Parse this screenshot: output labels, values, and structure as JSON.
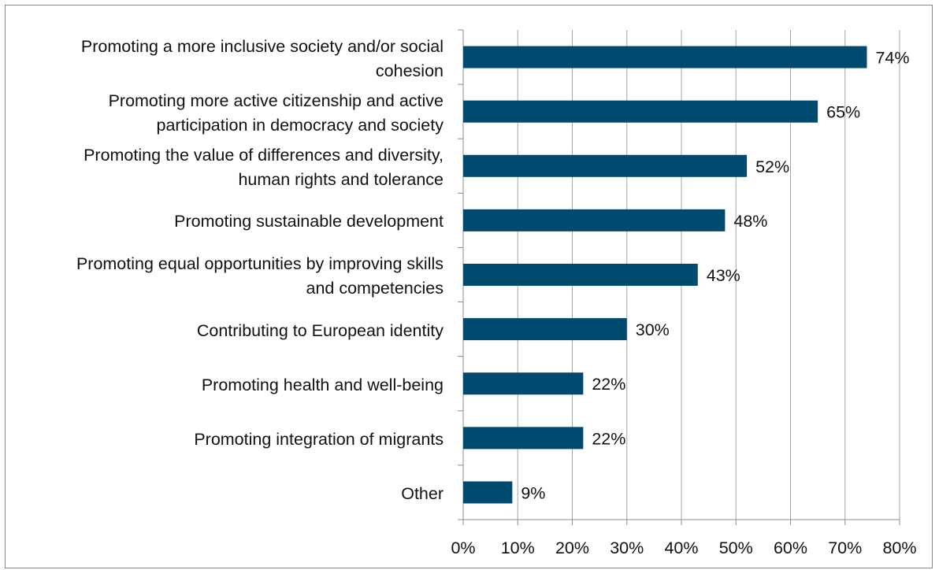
{
  "chart_data": {
    "type": "bar",
    "orientation": "horizontal",
    "categories": [
      [
        "Promoting a more inclusive society and/or social",
        "cohesion"
      ],
      [
        "Promoting more active citizenship and active",
        "participation in democracy and society"
      ],
      [
        "Promoting the value of differences and diversity,",
        "human rights and tolerance"
      ],
      [
        "Promoting sustainable development"
      ],
      [
        "Promoting equal opportunities by improving skills",
        "and competencies"
      ],
      [
        "Contributing to European identity"
      ],
      [
        "Promoting health and well-being"
      ],
      [
        "Promoting integration of migrants"
      ],
      [
        "Other"
      ]
    ],
    "values": [
      74,
      65,
      52,
      48,
      43,
      30,
      22,
      22,
      9
    ],
    "data_labels": [
      "74%",
      "65%",
      "52%",
      "48%",
      "43%",
      "30%",
      "22%",
      "22%",
      "9%"
    ],
    "xticks": [
      "0%",
      "10%",
      "20%",
      "30%",
      "40%",
      "50%",
      "60%",
      "70%",
      "80%"
    ],
    "xlim": [
      0,
      80
    ],
    "grid": "vertical",
    "legend": "none",
    "bar_color": "#004A70",
    "grid_color": "#A6A6A6",
    "text_color": "#111111"
  }
}
